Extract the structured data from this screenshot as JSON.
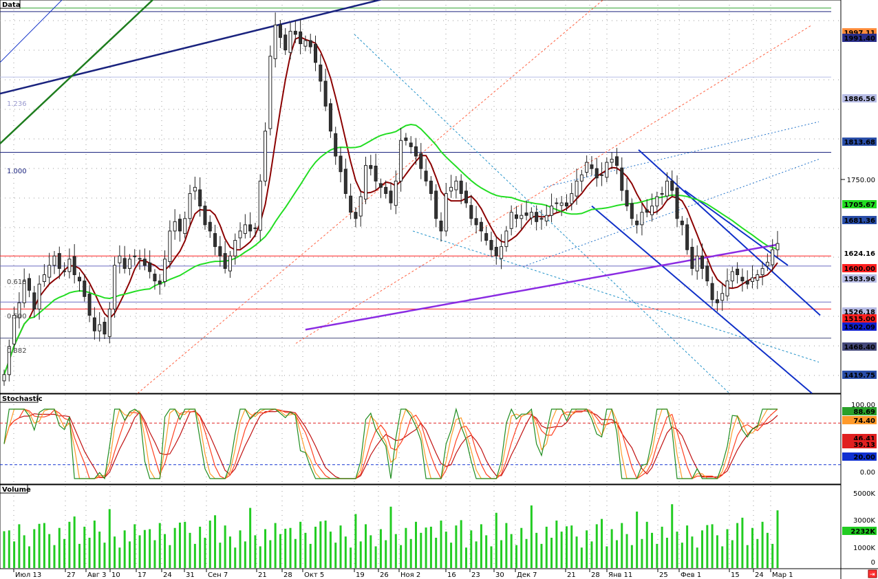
{
  "panels": {
    "price_title": "Data",
    "stoch_title": "Stochastic",
    "volume_title": "Volume"
  },
  "x_labels": [
    "Июл 13",
    "27",
    "Авг 3",
    "10",
    "17",
    "24",
    "31",
    "Сен 7",
    "21",
    "28",
    "Окт 5",
    "19",
    "26",
    "Ноя 2",
    "16",
    "23",
    "30",
    "Дек 7",
    "21",
    "28",
    "Янв 11",
    "25",
    "Фев 1",
    "15",
    "24",
    "Мар 1"
  ],
  "price_axis": {
    "ticks": [
      "1750.00"
    ],
    "markers": [
      {
        "label": "1997.11",
        "bg": "#ff8c3a",
        "fg": "#000"
      },
      {
        "label": "1991.40",
        "bg": "#2a2f8a",
        "fg": "#fff"
      },
      {
        "label": "1886.56",
        "bg": "#b8bde6",
        "fg": "#000"
      },
      {
        "label": "1813.68",
        "bg": "#2a4ea8",
        "fg": "#fff"
      },
      {
        "label": "1705.67",
        "bg": "#22dd22",
        "fg": "#000"
      },
      {
        "label": "1681.36",
        "bg": "#2a4ea8",
        "fg": "#fff"
      },
      {
        "label": "1624.16",
        "bg": "#ffffff",
        "fg": "#000"
      },
      {
        "label": "1600.00",
        "bg": "#ff2020",
        "fg": "#000"
      },
      {
        "label": "1583.96",
        "bg": "#b8bde6",
        "fg": "#000"
      },
      {
        "label": "1526.18",
        "bg": "#b8bde6",
        "fg": "#000"
      },
      {
        "label": "1515.00",
        "bg": "#ff2020",
        "fg": "#000"
      },
      {
        "label": "1502.09",
        "bg": "#1020d0",
        "fg": "#fff"
      },
      {
        "label": "1468.40",
        "bg": "#44487a",
        "fg": "#fff"
      },
      {
        "label": "1419.75",
        "bg": "#2a4ea8",
        "fg": "#fff"
      }
    ]
  },
  "fib_labels": [
    "1.236",
    "1.000",
    "0.618",
    "0.500",
    "0.382"
  ],
  "stoch_axis": {
    "ticks": [
      "100.00",
      "0.00"
    ],
    "markers": [
      {
        "label": "88.69",
        "bg": "#2aa02a",
        "fg": "#000"
      },
      {
        "label": "74.40",
        "bg": "#ff9a2a",
        "fg": "#000"
      },
      {
        "label": "46.41",
        "bg": "#e02020",
        "fg": "#000"
      },
      {
        "label": "39.13",
        "bg": "#e02020",
        "fg": "#000"
      },
      {
        "label": "20.00",
        "bg": "#1030d0",
        "fg": "#fff"
      }
    ]
  },
  "volume_axis": {
    "ticks": [
      "5000K",
      "3000K",
      "1000K",
      "0"
    ],
    "markers": [
      {
        "label": "2232K",
        "bg": "#22cc22",
        "fg": "#000"
      }
    ]
  },
  "colors": {
    "up_candle": "#ffffff",
    "down_candle": "#333333",
    "ma_short": "#8b0000",
    "ma_mid": "#22dd22",
    "ma_long": "#8a2be2",
    "channel": "#1030c8",
    "trend": "#1a237e",
    "support": "#ff2020",
    "volume": "#22cc22"
  },
  "chart_data": {
    "type": "candlestick",
    "x_categories": [
      "Июл 13",
      "27",
      "Авг 3",
      "10",
      "17",
      "24",
      "31",
      "Сен 7",
      "21",
      "28",
      "Окт 5",
      "19",
      "26",
      "Ноя 2",
      "16",
      "23",
      "30",
      "Дек 7",
      "21",
      "28",
      "Янв 11",
      "25",
      "Фев 1",
      "15",
      "24",
      "Мар 1"
    ],
    "price_range": [
      1380,
      2010
    ],
    "horizontal_levels": [
      1997.11,
      1991.4,
      1886.56,
      1766.0,
      1600.0,
      1583.96,
      1526.18,
      1515.0,
      1468.4
    ],
    "last_price": 1624.16,
    "ma_values_last": {
      "short": 1600.0,
      "mid": 1705.67,
      "long": 1624.16
    },
    "stochastic": {
      "ylim": [
        0,
        100
      ],
      "levels": [
        80,
        20
      ],
      "last": {
        "k_fast": 88.69,
        "k": 74.4,
        "d1": 46.41,
        "d2": 39.13
      }
    },
    "volume": {
      "ylim": [
        0,
        5500000
      ],
      "last": 2232000
    },
    "closes": [
      1410,
      1455,
      1505,
      1525,
      1560,
      1545,
      1515,
      1555,
      1570,
      1585,
      1600,
      1580,
      1575,
      1595,
      1570,
      1560,
      1535,
      1505,
      1480,
      1490,
      1475,
      1515,
      1585,
      1600,
      1580,
      1595,
      1600,
      1595,
      1585,
      1575,
      1560,
      1555,
      1595,
      1640,
      1655,
      1640,
      1660,
      1700,
      1710,
      1680,
      1650,
      1640,
      1615,
      1600,
      1580,
      1600,
      1625,
      1640,
      1650,
      1640,
      1645,
      1720,
      1800,
      1920,
      1970,
      1950,
      1930,
      1960,
      1955,
      1940,
      1945,
      1935,
      1910,
      1880,
      1840,
      1800,
      1760,
      1735,
      1700,
      1670,
      1660,
      1695,
      1745,
      1740,
      1720,
      1710,
      1700,
      1685,
      1720,
      1785,
      1785,
      1775,
      1760,
      1740,
      1720,
      1700,
      1660,
      1640,
      1700,
      1710,
      1720,
      1700,
      1685,
      1660,
      1650,
      1640,
      1625,
      1610,
      1600,
      1615,
      1640,
      1670,
      1660,
      1665,
      1665,
      1670,
      1655,
      1660,
      1665,
      1680,
      1685,
      1685,
      1680,
      1700,
      1720,
      1730,
      1750,
      1740,
      1725,
      1730,
      1750,
      1755,
      1745,
      1705,
      1680,
      1660,
      1650,
      1670,
      1670,
      1680,
      1695,
      1700,
      1720,
      1705,
      1660,
      1650,
      1610,
      1580,
      1600,
      1580,
      1560,
      1530,
      1525,
      1540,
      1560,
      1575,
      1570,
      1560,
      1555,
      1565,
      1570,
      1580,
      1590,
      1610,
      1620
    ]
  }
}
